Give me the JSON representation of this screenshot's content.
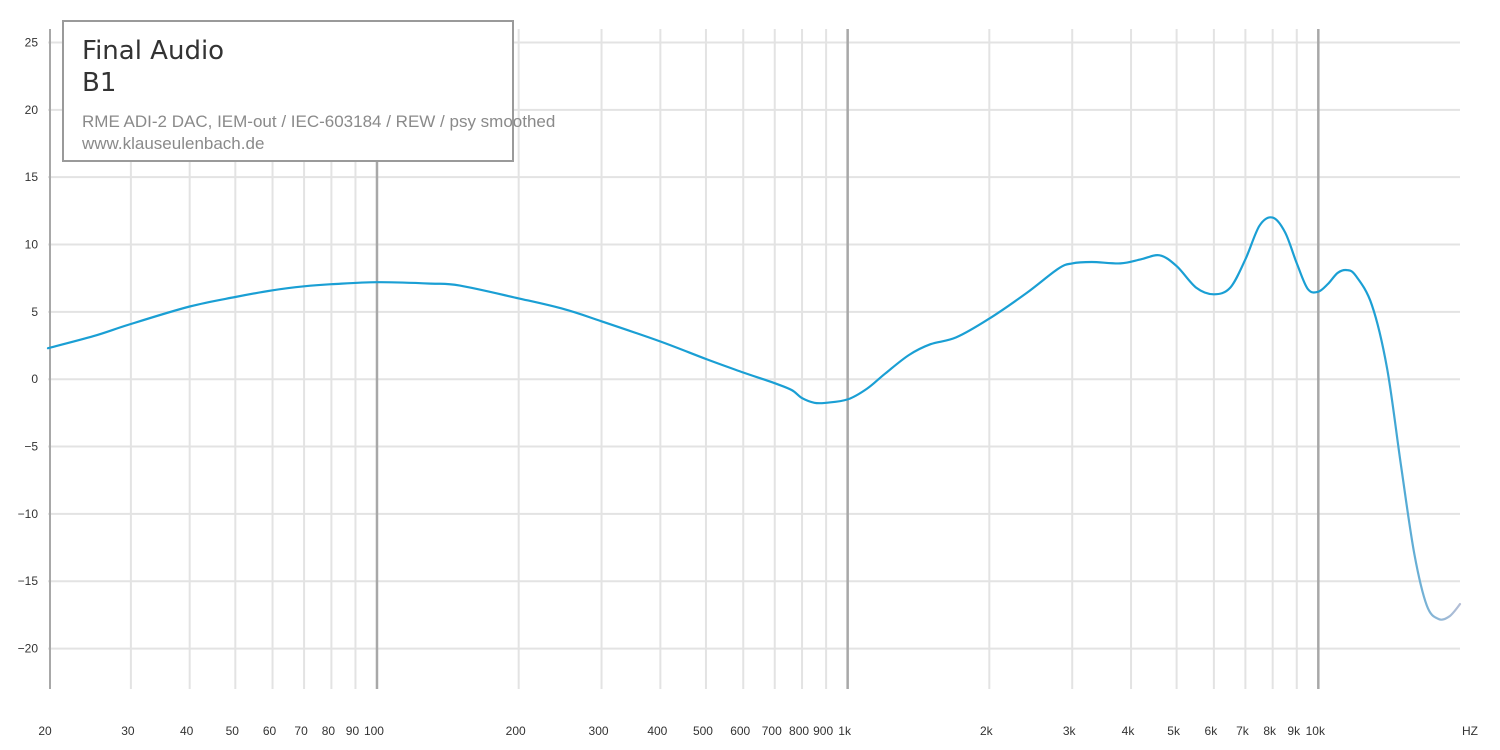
{
  "legend": {
    "brand": "Final Audio",
    "model": "B1",
    "setup": "RME ADI-2 DAC, IEM-out / IEC-603184 / REW / psy smoothed",
    "website": "www.klauseulenbach.de"
  },
  "colors": {
    "curve": "#1a9fd4",
    "curve_tail": "#b9bfd6",
    "grid": "#e3e3e3",
    "grid_major": "#a8a8a8",
    "tick_text": "#333333"
  },
  "chart_data": {
    "type": "line",
    "title": "",
    "xlabel": "",
    "ylabel": "",
    "x_scale": "log",
    "xlim": [
      20,
      20000
    ],
    "ylim": [
      -23,
      26
    ],
    "grid": true,
    "x_ticks": [
      {
        "value": 20,
        "label": "20"
      },
      {
        "value": 30,
        "label": "30"
      },
      {
        "value": 40,
        "label": "40"
      },
      {
        "value": 50,
        "label": "50"
      },
      {
        "value": 60,
        "label": "60"
      },
      {
        "value": 70,
        "label": "70"
      },
      {
        "value": 80,
        "label": "80"
      },
      {
        "value": 90,
        "label": "90"
      },
      {
        "value": 100,
        "label": "100"
      },
      {
        "value": 200,
        "label": "200"
      },
      {
        "value": 300,
        "label": "300"
      },
      {
        "value": 400,
        "label": "400"
      },
      {
        "value": 500,
        "label": "500"
      },
      {
        "value": 600,
        "label": "600"
      },
      {
        "value": 700,
        "label": "700"
      },
      {
        "value": 800,
        "label": "800"
      },
      {
        "value": 900,
        "label": "900"
      },
      {
        "value": 1000,
        "label": "1k"
      },
      {
        "value": 2000,
        "label": "2k"
      },
      {
        "value": 3000,
        "label": "3k"
      },
      {
        "value": 4000,
        "label": "4k"
      },
      {
        "value": 5000,
        "label": "5k"
      },
      {
        "value": 6000,
        "label": "6k"
      },
      {
        "value": 7000,
        "label": "7k"
      },
      {
        "value": 8000,
        "label": "8k"
      },
      {
        "value": 9000,
        "label": "9k"
      },
      {
        "value": 10000,
        "label": "10k"
      }
    ],
    "x_unit_label": "HZ",
    "major_x": [
      100,
      1000,
      10000
    ],
    "y_ticks": [
      {
        "value": 25,
        "label": "25"
      },
      {
        "value": 20,
        "label": "20"
      },
      {
        "value": 15,
        "label": "15"
      },
      {
        "value": 10,
        "label": "10"
      },
      {
        "value": 5,
        "label": "5"
      },
      {
        "value": 0,
        "label": "0"
      },
      {
        "value": -5,
        "label": "−5"
      },
      {
        "value": -10,
        "label": "−10"
      },
      {
        "value": -15,
        "label": "−15"
      },
      {
        "value": -20,
        "label": "−20"
      }
    ],
    "series": [
      {
        "values": [
          [
            20,
            2.3
          ],
          [
            25,
            3.2
          ],
          [
            30,
            4.1
          ],
          [
            40,
            5.4
          ],
          [
            50,
            6.1
          ],
          [
            60,
            6.6
          ],
          [
            70,
            6.9
          ],
          [
            80,
            7.05
          ],
          [
            100,
            7.2
          ],
          [
            130,
            7.1
          ],
          [
            150,
            6.95
          ],
          [
            200,
            6.0
          ],
          [
            250,
            5.2
          ],
          [
            300,
            4.3
          ],
          [
            400,
            2.8
          ],
          [
            500,
            1.5
          ],
          [
            600,
            0.5
          ],
          [
            700,
            -0.3
          ],
          [
            760,
            -0.8
          ],
          [
            800,
            -1.4
          ],
          [
            850,
            -1.75
          ],
          [
            900,
            -1.75
          ],
          [
            1000,
            -1.5
          ],
          [
            1100,
            -0.7
          ],
          [
            1200,
            0.4
          ],
          [
            1350,
            1.8
          ],
          [
            1500,
            2.6
          ],
          [
            1700,
            3.1
          ],
          [
            2000,
            4.5
          ],
          [
            2400,
            6.4
          ],
          [
            2800,
            8.2
          ],
          [
            3000,
            8.6
          ],
          [
            3300,
            8.7
          ],
          [
            3800,
            8.6
          ],
          [
            4200,
            8.9
          ],
          [
            4600,
            9.2
          ],
          [
            5000,
            8.4
          ],
          [
            5500,
            6.8
          ],
          [
            6000,
            6.3
          ],
          [
            6500,
            6.8
          ],
          [
            7000,
            8.9
          ],
          [
            7500,
            11.4
          ],
          [
            8000,
            12.0
          ],
          [
            8500,
            10.9
          ],
          [
            9000,
            8.6
          ],
          [
            9500,
            6.7
          ],
          [
            10000,
            6.5
          ],
          [
            10500,
            7.1
          ],
          [
            11000,
            7.9
          ],
          [
            11500,
            8.1
          ],
          [
            12000,
            7.7
          ],
          [
            13000,
            5.5
          ],
          [
            14000,
            0.8
          ],
          [
            15000,
            -6.5
          ],
          [
            16000,
            -13.0
          ],
          [
            17000,
            -16.8
          ],
          [
            18000,
            -17.8
          ],
          [
            19000,
            -17.6
          ],
          [
            20000,
            -16.7
          ]
        ]
      }
    ]
  }
}
